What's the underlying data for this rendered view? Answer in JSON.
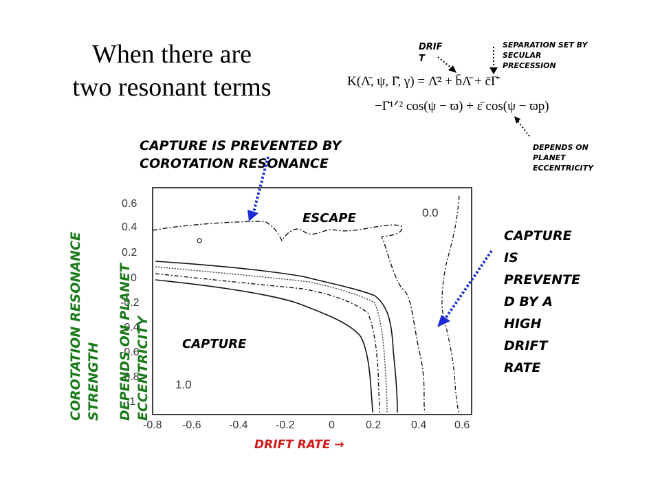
{
  "title_line1": "When there are",
  "title_line2": "two resonant terms",
  "formula": {
    "line1": "K(Λ̄, ψ, Γ̄, γ) = Λ̄² + b̄Λ̄ + c̄Γ̄",
    "line2": "−Γ̄¹ᐟ² cos(ψ − ϖ) + ε̄ cos(ψ − ϖp)"
  },
  "annotations": {
    "drift_line1": "DRIF",
    "drift_line2": "T",
    "separation": [
      "SEPARATION SET BY",
      "SECULAR",
      "PRECESSION"
    ],
    "depends": [
      "DEPENDS ON",
      "PLANET",
      "ECCENTRICITY"
    ],
    "corotation_prevent": [
      "CAPTURE IS PREVENTED BY",
      "COROTATION RESONANCE"
    ],
    "drift_prevent": [
      "CAPTURE",
      "IS",
      "PREVENTE",
      "D BY A",
      "HIGH",
      "DRIFT",
      "RATE"
    ],
    "ylabel_green1": "COROTATION RESONANCE",
    "ylabel_green2": "STRENGTH",
    "ylabel_green3": "DEPENDS ON PLANET",
    "ylabel_green4": "ECCENTRICITY",
    "xlabel": "DRIFT RATE",
    "xlabel_arrow": "→"
  },
  "plot": {
    "escape_label": "ESCAPE",
    "capture_label": "CAPTURE",
    "level_top": "0.0",
    "level_bottom": "1.0",
    "x_ticks": [
      "-0.8",
      "-0.6",
      "-0.4",
      "-0.2",
      "0",
      "0.2",
      "0.4",
      "0.6"
    ],
    "y_ticks": [
      "0.6",
      "0.4",
      "0.2",
      "0",
      "-0.2",
      "-0.4",
      "-0.6",
      "-0.8",
      "-1"
    ]
  },
  "colors": {
    "arrow_blue": "#1a2bd6",
    "green": "#1a7a1a",
    "red": "#d01818"
  }
}
